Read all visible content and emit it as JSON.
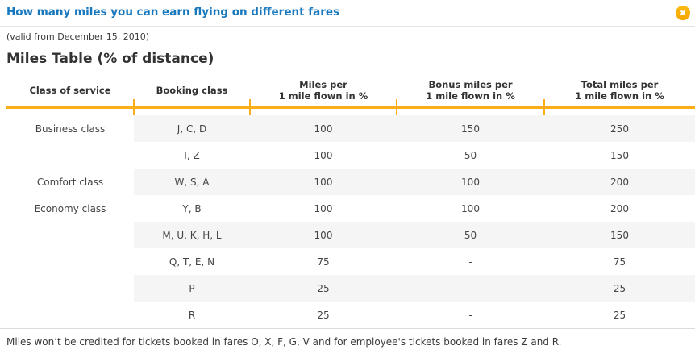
{
  "header": {
    "title": "How many miles you can earn flying on different fares",
    "close_icon": "✖"
  },
  "subtitle": "(valid from December 15, 2010)",
  "section_title": "Miles Table (% of distance)",
  "table": {
    "columns": [
      {
        "line1": "Class of service",
        "line2": ""
      },
      {
        "line1": "Booking class",
        "line2": ""
      },
      {
        "line1": "Miles per",
        "line2": "1 mile flown in %"
      },
      {
        "line1": "Bonus miles per",
        "line2": "1 mile flown in %"
      },
      {
        "line1": "Total miles per",
        "line2": "1 mile flown in %"
      }
    ],
    "rows": [
      {
        "service": "Business class",
        "booking": "J, C, D",
        "miles": "100",
        "bonus": "150",
        "total": "250"
      },
      {
        "service": "",
        "booking": "I, Z",
        "miles": "100",
        "bonus": "50",
        "total": "150"
      },
      {
        "service": "Comfort class",
        "booking": "W, S, A",
        "miles": "100",
        "bonus": "100",
        "total": "200"
      },
      {
        "service": "Economy class",
        "booking": "Y, B",
        "miles": "100",
        "bonus": "100",
        "total": "200"
      },
      {
        "service": "",
        "booking": "M, U, K, H, L",
        "miles": "100",
        "bonus": "50",
        "total": "150"
      },
      {
        "service": "",
        "booking": "Q, T, E, N",
        "miles": "75",
        "bonus": "-",
        "total": "75"
      },
      {
        "service": "",
        "booking": "P",
        "miles": "25",
        "bonus": "-",
        "total": "25"
      },
      {
        "service": "",
        "booking": "R",
        "miles": "25",
        "bonus": "-",
        "total": "25"
      }
    ]
  },
  "footer_note": "Miles won’t be credited for tickets booked in fares O, X, F, G, V and for employee's tickets booked in fares Z and R.",
  "colors": {
    "accent_orange": "#fbae17",
    "title_blue": "#1878be",
    "stripe_gray": "#f5f5f5",
    "text_dark": "#333333",
    "rule_gray": "#d9dcde"
  }
}
